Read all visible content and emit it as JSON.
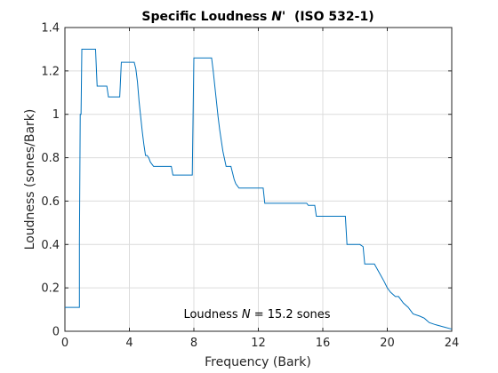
{
  "chart_data": {
    "type": "line",
    "title_main": "Specific Loudness ",
    "title_symbol": "N'",
    "title_suffix": "  (ISO 532-1)",
    "xlabel": "Frequency (Bark)",
    "ylabel": "Loudness (sones/Bark)",
    "xlim": [
      0,
      24
    ],
    "ylim": [
      0,
      1.4
    ],
    "xticks": [
      0,
      4,
      8,
      12,
      16,
      20,
      24
    ],
    "xtick_labels": [
      "0",
      "4",
      "8",
      "12",
      "16",
      "20",
      "24"
    ],
    "yticks": [
      0,
      0.2,
      0.4,
      0.6,
      0.8,
      1.0,
      1.2,
      1.4
    ],
    "ytick_labels": [
      "0",
      "0.2",
      "0.4",
      "0.6",
      "0.8",
      "1",
      "1.2",
      "1.4"
    ],
    "grid": true,
    "annotation_prefix": "Loudness ",
    "annotation_symbol": "N",
    "annotation_suffix": " = 15.2 sones",
    "line_color": "#0072BD",
    "series": [
      {
        "x": [
          0,
          0.9,
          0.9,
          0.95,
          1.0,
          1.05,
          1.1,
          1.9,
          2.0,
          2.6,
          2.7,
          3.4,
          3.5,
          4.3,
          4.4,
          4.5,
          4.6,
          4.7,
          4.8,
          4.9,
          5.0,
          5.1,
          5.2,
          5.3,
          5.4,
          5.5,
          5.6,
          6.6,
          6.7,
          7.9,
          8.0,
          9.1,
          9.2,
          9.3,
          9.4,
          9.5,
          9.6,
          9.7,
          9.8,
          10.0,
          10.1,
          10.3,
          10.4,
          10.5,
          10.6,
          10.7,
          10.8,
          11.2,
          11.3,
          12.3,
          12.4,
          13.1,
          13.2,
          15.0,
          15.1,
          15.5,
          15.6,
          16.7,
          16.8,
          17.4,
          17.5,
          18.2,
          18.3,
          18.5,
          18.6,
          19.2,
          19.5,
          19.8,
          20.0,
          20.2,
          20.5,
          20.7,
          21.0,
          21.3,
          21.6,
          22.0,
          22.3,
          22.6,
          23.0,
          23.5,
          24.0
        ],
        "y": [
          0.11,
          0.11,
          0.41,
          1.0,
          1.0,
          1.3,
          1.3,
          1.3,
          1.13,
          1.13,
          1.08,
          1.08,
          1.24,
          1.24,
          1.21,
          1.15,
          1.06,
          0.99,
          0.92,
          0.86,
          0.81,
          0.81,
          0.8,
          0.78,
          0.77,
          0.76,
          0.76,
          0.76,
          0.72,
          0.72,
          1.26,
          1.26,
          1.2,
          1.13,
          1.06,
          0.99,
          0.93,
          0.88,
          0.83,
          0.76,
          0.76,
          0.76,
          0.73,
          0.7,
          0.68,
          0.67,
          0.66,
          0.66,
          0.66,
          0.66,
          0.59,
          0.59,
          0.59,
          0.59,
          0.58,
          0.58,
          0.53,
          0.53,
          0.53,
          0.53,
          0.4,
          0.4,
          0.4,
          0.39,
          0.31,
          0.31,
          0.27,
          0.23,
          0.2,
          0.18,
          0.16,
          0.16,
          0.13,
          0.11,
          0.08,
          0.07,
          0.06,
          0.04,
          0.03,
          0.02,
          0.01
        ]
      }
    ]
  }
}
